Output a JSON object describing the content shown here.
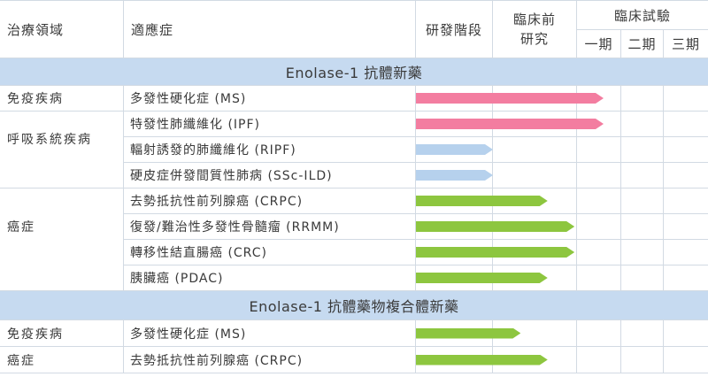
{
  "chart_data": {
    "type": "table",
    "header": {
      "area": "治療領域",
      "indication": "適應症",
      "rd_stage": "研發階段",
      "preclinical_line1": "臨床前",
      "preclinical_line2": "研究",
      "clinical_trial": "臨床試驗",
      "phases": [
        "一期",
        "二期",
        "三期"
      ]
    },
    "sections": [
      {
        "title": "Enolase-1 抗體新藥",
        "groups": [
          {
            "area": "免疫疾病",
            "rows": [
              {
                "indication": "多發性硬化症 (MS)",
                "stage_progress": 2.6,
                "color": "#f37da0"
              }
            ]
          },
          {
            "area": "呼吸系統疾病",
            "rows": [
              {
                "indication": "特發性肺纖維化 (IPF)",
                "stage_progress": 2.6,
                "color": "#f37da0"
              },
              {
                "indication": "輻射誘發的肺纖維化 (RIPF)",
                "stage_progress": 1.0,
                "color": "#b6d1ed"
              },
              {
                "indication": "硬皮症併發間質性肺病 (SSc-ILD)",
                "stage_progress": 1.0,
                "color": "#b6d1ed"
              }
            ]
          },
          {
            "area": "癌症",
            "rows": [
              {
                "indication": "去勢抵抗性前列腺癌 (CRPC)",
                "stage_progress": 1.65,
                "color": "#8dc63f"
              },
              {
                "indication": "復發/難治性多發性骨髓瘤 (RRMM)",
                "stage_progress": 1.97,
                "color": "#8dc63f"
              },
              {
                "indication": "轉移性結直腸癌 (CRC)",
                "stage_progress": 1.97,
                "color": "#8dc63f"
              },
              {
                "indication": "胰臟癌 (PDAC)",
                "stage_progress": 1.65,
                "color": "#8dc63f"
              }
            ]
          }
        ]
      },
      {
        "title": "Enolase-1 抗體藥物複合體新藥",
        "groups": [
          {
            "area": "免疫疾病",
            "rows": [
              {
                "indication": "多發性硬化症 (MS)",
                "stage_progress": 1.33,
                "color": "#8dc63f"
              }
            ]
          },
          {
            "area": "癌症",
            "rows": [
              {
                "indication": "去勢抵抗性前列腺癌 (CRPC)",
                "stage_progress": 1.65,
                "color": "#8dc63f"
              }
            ]
          }
        ]
      }
    ]
  },
  "colors": {
    "section_background": "#c6daf0",
    "grid_line": "#d2dae3",
    "text": "#3a3a3a"
  }
}
